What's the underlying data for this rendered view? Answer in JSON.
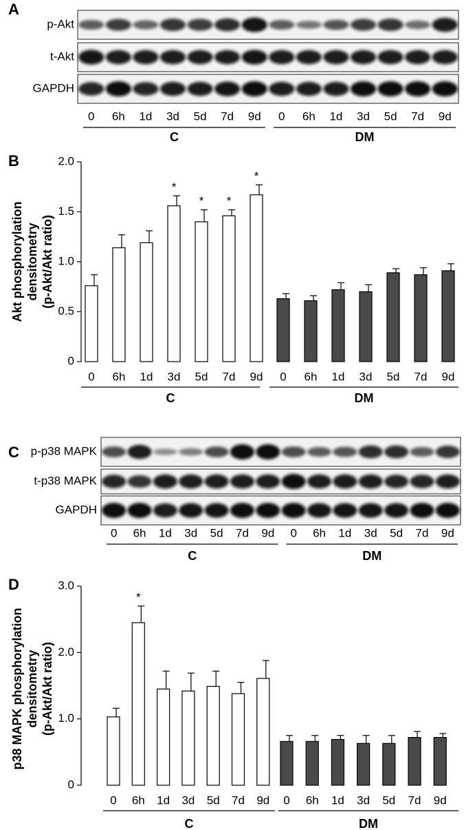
{
  "blot_a": {
    "label": "A",
    "rows": [
      "p-Akt",
      "t-Akt",
      "GAPDH"
    ],
    "groups": [
      {
        "name": "C",
        "lanes": [
          "0",
          "6h",
          "1d",
          "3d",
          "5d",
          "7d",
          "9d"
        ]
      },
      {
        "name": "DM",
        "lanes": [
          "0",
          "6h",
          "1d",
          "3d",
          "5d",
          "7d",
          "9d"
        ]
      }
    ]
  },
  "blot_c": {
    "label": "C",
    "rows": [
      "p-p38 MAPK",
      "t-p38 MAPK",
      "GAPDH"
    ],
    "groups": [
      {
        "name": "C",
        "lanes": [
          "0",
          "6h",
          "1d",
          "3d",
          "5d",
          "7d",
          "9d"
        ]
      },
      {
        "name": "DM",
        "lanes": [
          "0",
          "6h",
          "1d",
          "3d",
          "5d",
          "7d",
          "9d"
        ]
      }
    ]
  },
  "chart_data": [
    {
      "type": "bar",
      "label": "B",
      "y_label": [
        "Akt phosphorylation",
        "densitometry",
        "(p-Akt/Akt ratio)"
      ],
      "ylim": [
        0,
        2
      ],
      "yticks": [
        0,
        0.5,
        {
          "value": 1,
          "label": "1.0"
        },
        1.5,
        {
          "value": 2,
          "label": "2.0"
        }
      ],
      "groups": [
        {
          "name": "C",
          "color": "#ffffff",
          "categories": [
            "0",
            "6h",
            "1d",
            "3d",
            "5d",
            "7d",
            "9d"
          ],
          "values": [
            0.76,
            1.14,
            1.19,
            1.56,
            1.4,
            1.46,
            1.67
          ],
          "errors": [
            0.11,
            0.13,
            0.12,
            0.1,
            0.12,
            0.06,
            0.1
          ],
          "significance": [
            null,
            null,
            null,
            "*",
            "*",
            "*",
            "*"
          ]
        },
        {
          "name": "DM",
          "color": "#4a4a4a",
          "categories": [
            "0",
            "6h",
            "1d",
            "3d",
            "5d",
            "7d",
            "9d"
          ],
          "values": [
            0.63,
            0.61,
            0.72,
            0.7,
            0.89,
            0.87,
            0.91
          ],
          "errors": [
            0.05,
            0.05,
            0.07,
            0.07,
            0.04,
            0.07,
            0.07
          ]
        }
      ]
    },
    {
      "type": "bar",
      "label": "D",
      "y_label": [
        "p38 MAPK phosphorylation",
        "densitometry",
        "(p-Akt/Akt ratio)"
      ],
      "ylim": [
        0,
        3
      ],
      "yticks": [
        0,
        {
          "value": 1,
          "label": "1.0"
        },
        {
          "value": 2,
          "label": "2.0"
        },
        {
          "value": 3,
          "label": "3.0"
        }
      ],
      "groups": [
        {
          "name": "C",
          "color": "#ffffff",
          "categories": [
            "0",
            "6h",
            "1d",
            "3d",
            "5d",
            "7d",
            "9d"
          ],
          "values": [
            1.03,
            2.45,
            1.45,
            1.42,
            1.49,
            1.38,
            1.61
          ],
          "errors": [
            0.13,
            0.25,
            0.27,
            0.27,
            0.23,
            0.17,
            0.27
          ],
          "significance": [
            null,
            "*",
            null,
            null,
            null,
            null,
            null
          ]
        },
        {
          "name": "DM",
          "color": "#4a4a4a",
          "categories": [
            "0",
            "6h",
            "1d",
            "3d",
            "5d",
            "7d",
            "9d"
          ],
          "values": [
            0.66,
            0.66,
            0.69,
            0.63,
            0.63,
            0.72,
            0.72
          ],
          "errors": [
            0.09,
            0.09,
            0.06,
            0.12,
            0.12,
            0.09,
            0.06
          ]
        }
      ]
    }
  ]
}
